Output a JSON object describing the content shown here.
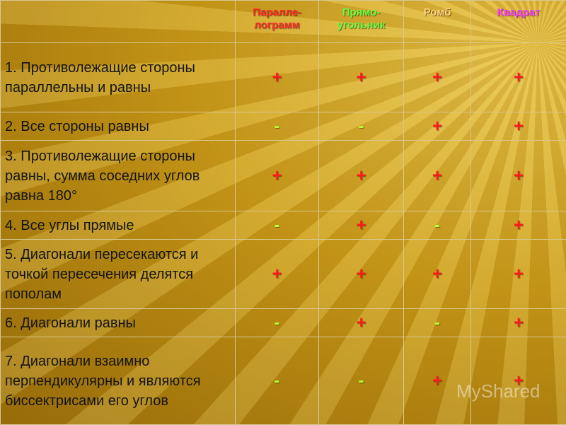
{
  "table": {
    "columns": [
      "Паралле-\nлограмм",
      "Прямо-\nугольник",
      "Ромб",
      "Квадрат"
    ],
    "rows": [
      {
        "label": "1. Противолежащие стороны параллельны и равны",
        "marks": [
          "+",
          "+",
          "+",
          "+"
        ]
      },
      {
        "label": "2. Все стороны равны",
        "marks": [
          "-",
          "-",
          "+",
          "+"
        ]
      },
      {
        "label": "3. Противолежащие стороны равны, сумма соседних углов равна 180°",
        "marks": [
          "+",
          "+",
          "+",
          "+"
        ]
      },
      {
        "label": "4. Все углы прямые",
        "marks": [
          "-",
          "+",
          "-",
          "+"
        ]
      },
      {
        "label": "5. Диагонали пересекаются и точкой пересечения делятся пополам",
        "marks": [
          "+",
          "+",
          "+",
          "+"
        ]
      },
      {
        "label": "6. Диагонали равны",
        "marks": [
          "-",
          "+",
          "-",
          "+"
        ]
      },
      {
        "label": "7. Диагонали взаимно перпендикулярны и являются биссектрисами его углов",
        "marks": [
          "-",
          "-",
          "+",
          "+"
        ]
      }
    ]
  },
  "watermark": "MyShared"
}
